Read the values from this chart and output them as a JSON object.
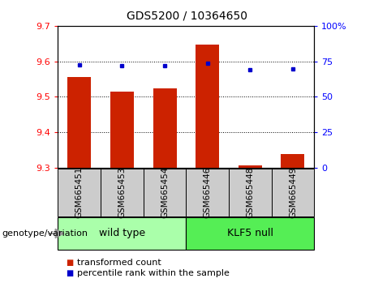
{
  "title": "GDS5200 / 10364650",
  "samples": [
    "GSM665451",
    "GSM665453",
    "GSM665454",
    "GSM665446",
    "GSM665448",
    "GSM665449"
  ],
  "bar_values": [
    9.555,
    9.515,
    9.525,
    9.648,
    9.306,
    9.34
  ],
  "dot_values_left": [
    9.59,
    9.587,
    9.587,
    9.594,
    9.576,
    9.578
  ],
  "ylim_left": [
    9.3,
    9.7
  ],
  "ylim_right": [
    0,
    100
  ],
  "yticks_left": [
    9.3,
    9.4,
    9.5,
    9.6,
    9.7
  ],
  "yticks_right": [
    0,
    25,
    50,
    75,
    100
  ],
  "grid_lines": [
    9.4,
    9.5,
    9.6
  ],
  "bar_color": "#cc2200",
  "dot_color": "#0000cc",
  "wild_type_label": "wild type",
  "klf5_null_label": "KLF5 null",
  "genotype_label": "genotype/variation",
  "legend_bar_label": "transformed count",
  "legend_dot_label": "percentile rank within the sample",
  "group_box_color_wt": "#aaffaa",
  "group_box_color_kn": "#55ee55",
  "sample_box_color": "#cccccc",
  "bar_width": 0.55,
  "title_fontsize": 10,
  "tick_fontsize": 8,
  "label_fontsize": 8,
  "sample_fontsize": 7.5,
  "group_fontsize": 9,
  "legend_fontsize": 8
}
